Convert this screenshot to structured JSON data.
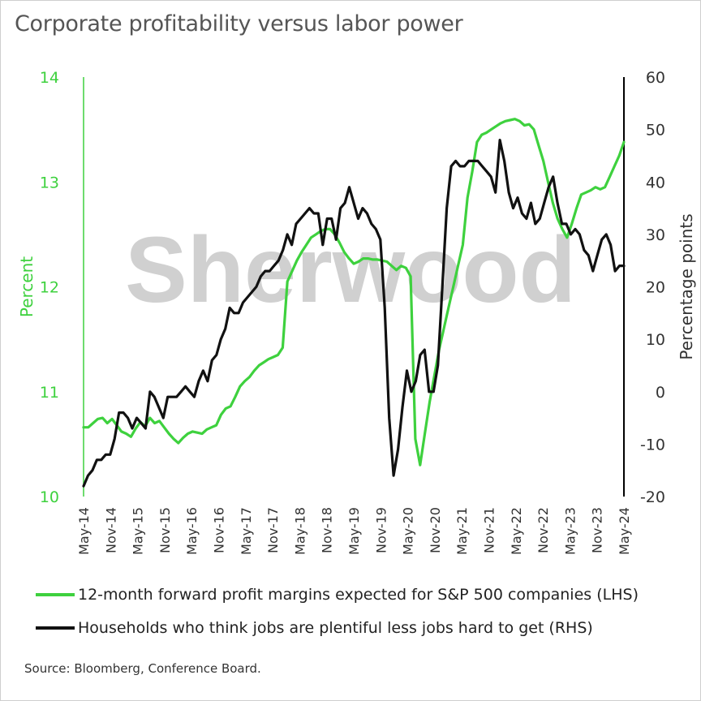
{
  "title": "Corporate profitability versus labor power",
  "watermark": "Sherwood",
  "source": "Source: Bloomberg, Conference Board.",
  "colors": {
    "green": "#3ed13e",
    "black": "#111111",
    "left_axis": "#3ed13e",
    "right_axis": "#000000",
    "watermark": "#d0d0d0"
  },
  "chart_data": {
    "type": "line",
    "grid": false,
    "legend_position": "bottom",
    "x_ticks": [
      "May-14",
      "Nov-14",
      "May-15",
      "Nov-15",
      "May-16",
      "Nov-16",
      "May-17",
      "Nov-17",
      "May-18",
      "Nov-18",
      "May-19",
      "Nov-19",
      "May-20",
      "Nov-20",
      "May-21",
      "Nov-21",
      "May-22",
      "Nov-22",
      "May-23",
      "Nov-23",
      "May-24"
    ],
    "y_left": {
      "label": "Percent",
      "range": [
        10,
        14
      ],
      "ticks": [
        "10",
        "11",
        "12",
        "13",
        "14"
      ]
    },
    "y_right": {
      "label": "Percentage points",
      "range": [
        -20,
        60
      ],
      "ticks": [
        "-20",
        "-10",
        "0",
        "10",
        "20",
        "30",
        "40",
        "50",
        "60"
      ]
    },
    "x_start": "May-14",
    "x_end": "May-24",
    "series": [
      {
        "name": "12-month forward profit margins expected for S&P 500 companies (LHS)",
        "axis": "left",
        "color": "#3ed13e",
        "values": [
          10.66,
          10.66,
          10.7,
          10.74,
          10.75,
          10.7,
          10.74,
          10.68,
          10.62,
          10.6,
          10.57,
          10.65,
          10.71,
          10.67,
          10.75,
          10.7,
          10.72,
          10.66,
          10.6,
          10.55,
          10.51,
          10.56,
          10.6,
          10.62,
          10.61,
          10.6,
          10.64,
          10.66,
          10.68,
          10.78,
          10.84,
          10.86,
          10.95,
          11.05,
          11.1,
          11.14,
          11.2,
          11.25,
          11.28,
          11.31,
          11.33,
          11.35,
          11.42,
          12.05,
          12.15,
          12.25,
          12.33,
          12.4,
          12.47,
          12.5,
          12.53,
          12.55,
          12.55,
          12.5,
          12.42,
          12.33,
          12.27,
          12.22,
          12.24,
          12.27,
          12.27,
          12.26,
          12.26,
          12.25,
          12.24,
          12.2,
          12.16,
          12.2,
          12.18,
          12.1,
          10.55,
          10.3,
          10.6,
          10.9,
          11.15,
          11.4,
          11.6,
          11.8,
          12.0,
          12.2,
          12.4,
          12.85,
          13.1,
          13.38,
          13.45,
          13.47,
          13.5,
          13.53,
          13.56,
          13.58,
          13.59,
          13.6,
          13.58,
          13.54,
          13.55,
          13.5,
          13.35,
          13.2,
          13.0,
          12.8,
          12.65,
          12.55,
          12.47,
          12.6,
          12.75,
          12.88,
          12.9,
          12.92,
          12.95,
          12.93,
          12.95,
          13.05,
          13.15,
          13.25,
          13.38
        ]
      },
      {
        "name": "Households who think jobs are plentiful less jobs hard to get (RHS)",
        "axis": "right",
        "color": "#111111",
        "values": [
          -18,
          -16,
          -15,
          -13,
          -13,
          -12,
          -12,
          -9,
          -4,
          -4,
          -5,
          -7,
          -5,
          -6,
          -7,
          0,
          -1,
          -3,
          -5,
          -1,
          -1,
          -1,
          0,
          1,
          0,
          -1,
          2,
          4,
          2,
          6,
          7,
          10,
          12,
          16,
          15,
          15,
          17,
          18,
          19,
          20,
          22,
          23,
          23,
          24,
          25,
          27,
          30,
          28,
          32,
          33,
          34,
          35,
          34,
          34,
          28,
          33,
          33,
          29,
          35,
          36,
          39,
          36,
          33,
          35,
          34,
          32,
          31,
          29,
          16,
          -5,
          -16,
          -11,
          -3,
          4,
          0,
          2,
          7,
          8,
          0,
          0,
          5,
          20,
          35,
          43,
          44,
          43,
          43,
          44,
          44,
          44,
          43,
          42,
          41,
          38,
          48,
          44,
          38,
          35,
          37,
          34,
          33,
          36,
          32,
          33,
          36,
          39,
          41,
          36,
          32,
          32,
          30,
          31,
          30,
          27,
          26,
          23,
          26,
          29,
          30,
          28,
          23,
          24,
          24
        ]
      }
    ]
  }
}
